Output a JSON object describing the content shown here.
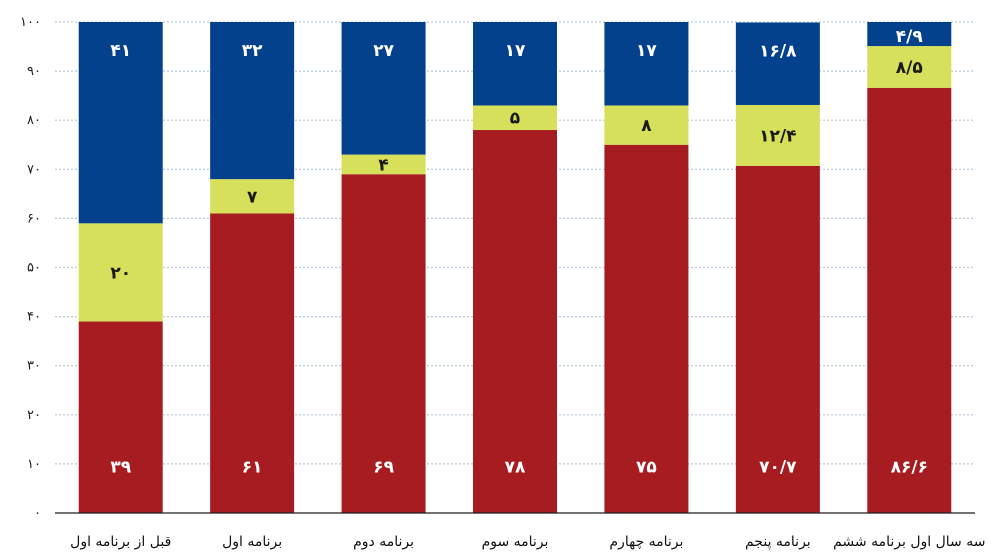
{
  "chart_data": {
    "type": "bar",
    "stacked": true,
    "categories": [
      "قبل از برنامه اول",
      "برنامه اول",
      "برنامه دوم",
      "برنامه سوم",
      "برنامه چهارم",
      "برنامه پنجم",
      "سه سال اول برنامه ششم"
    ],
    "series": [
      {
        "values": [
          39,
          61,
          69,
          78,
          75,
          70.7,
          86.6
        ],
        "labels": [
          "۳۹",
          "۶۱",
          "۶۹",
          "۷۸",
          "۷۵",
          "۷۰/۷",
          "۸۶/۶"
        ],
        "color": "#A61C21",
        "label_color": "#ffffff"
      },
      {
        "values": [
          20,
          7,
          4,
          5,
          8,
          12.4,
          8.5
        ],
        "labels": [
          "۲۰",
          "۷",
          "۴",
          "۵",
          "۸",
          "۱۲/۴",
          "۸/۵"
        ],
        "color": "#D6E05A",
        "label_color": "#1a1a1a"
      },
      {
        "values": [
          41,
          32,
          27,
          17,
          17,
          16.8,
          4.9
        ],
        "labels": [
          "۴۱",
          "۳۲",
          "۲۷",
          "۱۷",
          "۱۷",
          "۱۶/۸",
          "۴/۹"
        ],
        "color": "#03418C",
        "label_color": "#ffffff"
      }
    ],
    "ylim": [
      0,
      100
    ],
    "yticks": [
      0,
      10,
      20,
      30,
      40,
      50,
      60,
      70,
      80,
      90,
      100
    ],
    "ytick_labels": [
      "۰",
      "۱۰",
      "۲۰",
      "۳۰",
      "۴۰",
      "۵۰",
      "۶۰",
      "۷۰",
      "۸۰",
      "۹۰",
      "۱۰۰"
    ],
    "grid": true,
    "title": "",
    "xlabel": "",
    "ylabel": ""
  },
  "colors": {
    "grid": "#B8C9D9",
    "axis": "#1f1f1f"
  }
}
